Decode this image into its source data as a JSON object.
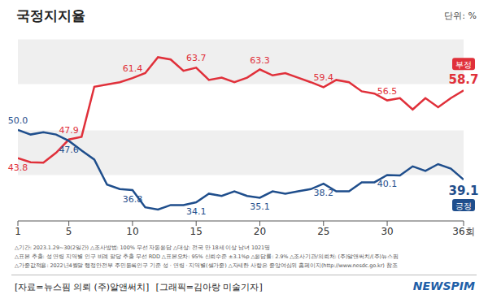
{
  "chart_data": {
    "type": "line",
    "title": "국정지지율",
    "unit": "단위: %",
    "x": [
      1,
      2,
      3,
      4,
      5,
      6,
      7,
      8,
      9,
      10,
      11,
      12,
      13,
      14,
      15,
      16,
      17,
      18,
      19,
      20,
      21,
      22,
      23,
      24,
      25,
      26,
      27,
      28,
      29,
      30,
      31,
      32,
      33,
      34,
      35,
      36
    ],
    "xlim": [
      1,
      36
    ],
    "xticks": [
      1,
      5,
      10,
      15,
      20,
      25,
      30,
      {
        "value": 36,
        "label": "36회"
      }
    ],
    "ylim": [
      30,
      70
    ],
    "yticks": [
      30,
      40,
      50,
      60,
      70
    ],
    "grid": true,
    "tick_labels": "x",
    "data_labels": true,
    "series": [
      {
        "name": "부정",
        "color": "#e0303a",
        "marker": "none",
        "line_style": "solid",
        "values": [
          43.8,
          42.9,
          42.8,
          45,
          47.9,
          48.5,
          59.5,
          60,
          60.5,
          61.4,
          62.5,
          66,
          65.5,
          63,
          63.7,
          61,
          61.5,
          60.5,
          61.5,
          63.3,
          62,
          62.5,
          61.5,
          60.5,
          59.4,
          61,
          60.5,
          58.5,
          58,
          56.5,
          57,
          54.5,
          57,
          55,
          57,
          58.7
        ],
        "value_labels": [
          "43.8",
          null,
          null,
          null,
          "47.9",
          null,
          null,
          null,
          null,
          "61.4",
          null,
          null,
          null,
          null,
          "63.7",
          null,
          null,
          null,
          null,
          "63.3",
          null,
          null,
          null,
          null,
          "59.4",
          null,
          null,
          null,
          null,
          "56.5",
          null,
          null,
          null,
          null,
          null,
          "58.7"
        ]
      },
      {
        "name": "긍정",
        "color": "#1f4e8c",
        "marker": "none",
        "line_style": "solid",
        "values": [
          50.0,
          49,
          49.5,
          49,
          47.6,
          45.5,
          43.5,
          38,
          37,
          36.8,
          33,
          32.5,
          33.5,
          33.5,
          34.1,
          36,
          35.5,
          36.5,
          35.5,
          35.1,
          36.5,
          36,
          36.5,
          37,
          38.2,
          36.5,
          36.5,
          38.5,
          38.5,
          40.1,
          40,
          42,
          41,
          42.5,
          41.5,
          39.1
        ],
        "value_labels": [
          "50.0",
          null,
          null,
          null,
          "47.6",
          null,
          null,
          null,
          null,
          "36.8",
          null,
          null,
          null,
          null,
          "34.1",
          null,
          null,
          null,
          null,
          "35.1",
          null,
          null,
          null,
          null,
          "38.2",
          null,
          null,
          null,
          null,
          "40.1",
          null,
          null,
          null,
          null,
          null,
          "39.1"
        ]
      }
    ]
  },
  "notes": [
    "△기간: 2023.1.29~30(2일간) △조사방법: 100% 무선 자동응답 △대상: 전국 만 18세 이상 남녀 1021명",
    "△표본 추출: 성 연령 지역별 인구 비례 할당 추출 무선 RDD △표본오차: 95% 신뢰수준 ±3.1%p △응답률: 2.9% △조사기관/의뢰처: (주)알앤써치/(주)뉴스핌",
    "△가중값적용: 2022년4월말 행정안전부 주민등록인구 기준 성 · 연령 · 지역별(셀가중) △자세한 사항은 중앙여심위 홈페이지(http://www.nesdc.go.kr) 참조"
  ],
  "source": "[자료=뉴스핌 의뢰 (주)알앤써치]",
  "credit": "[그래픽=김아랑 미술기자]",
  "logo": "NEWSPIM"
}
